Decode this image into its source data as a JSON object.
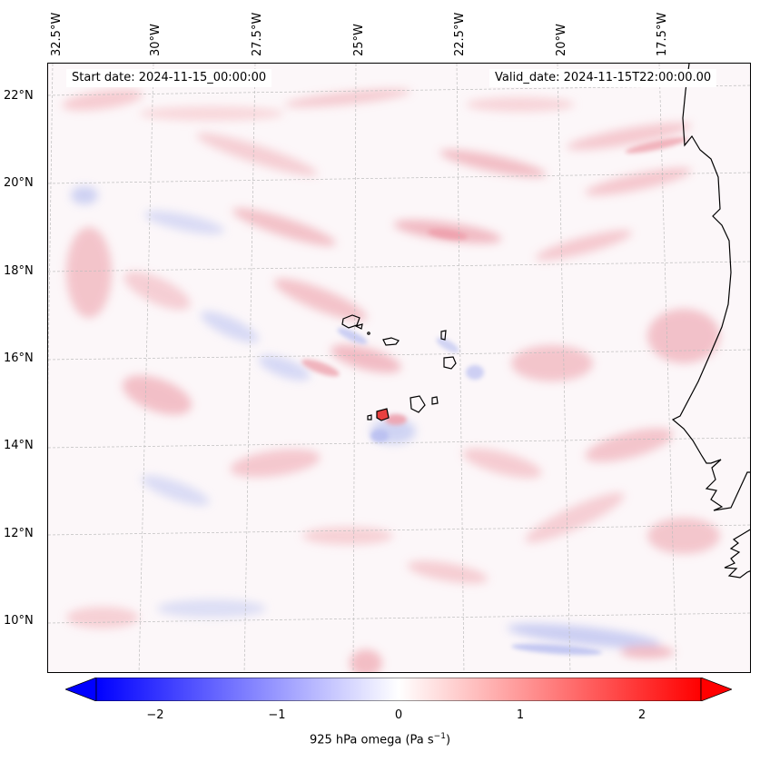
{
  "map": {
    "start_date": "Start date: 2024-11-15_00:00:00",
    "valid_date": "Valid_date: 2024-11-15T22:00:00.00",
    "lon_labels": [
      "32.5°W",
      "30°W",
      "27.5°W",
      "25°W",
      "22.5°W",
      "20°W",
      "17.5°W"
    ],
    "lat_labels": [
      "22°N",
      "20°N",
      "18°N",
      "16°N",
      "14°N",
      "12°N",
      "10°N"
    ],
    "field": "925 hPa omega",
    "colormap": "bwr",
    "colors": {
      "negative": "#0000ff",
      "zero": "#ffffff",
      "positive": "#ff0000",
      "coast": "#000000"
    }
  },
  "colorbar": {
    "ticks": [
      "−2",
      "−1",
      "0",
      "1",
      "2"
    ],
    "tick_values": [
      -2,
      -1,
      0,
      1,
      2
    ],
    "range": [
      -2.5,
      2.5
    ],
    "extend": "both",
    "label": "925 hPa omega (Pa s",
    "label_sup": "−1",
    "label_end": ")"
  }
}
